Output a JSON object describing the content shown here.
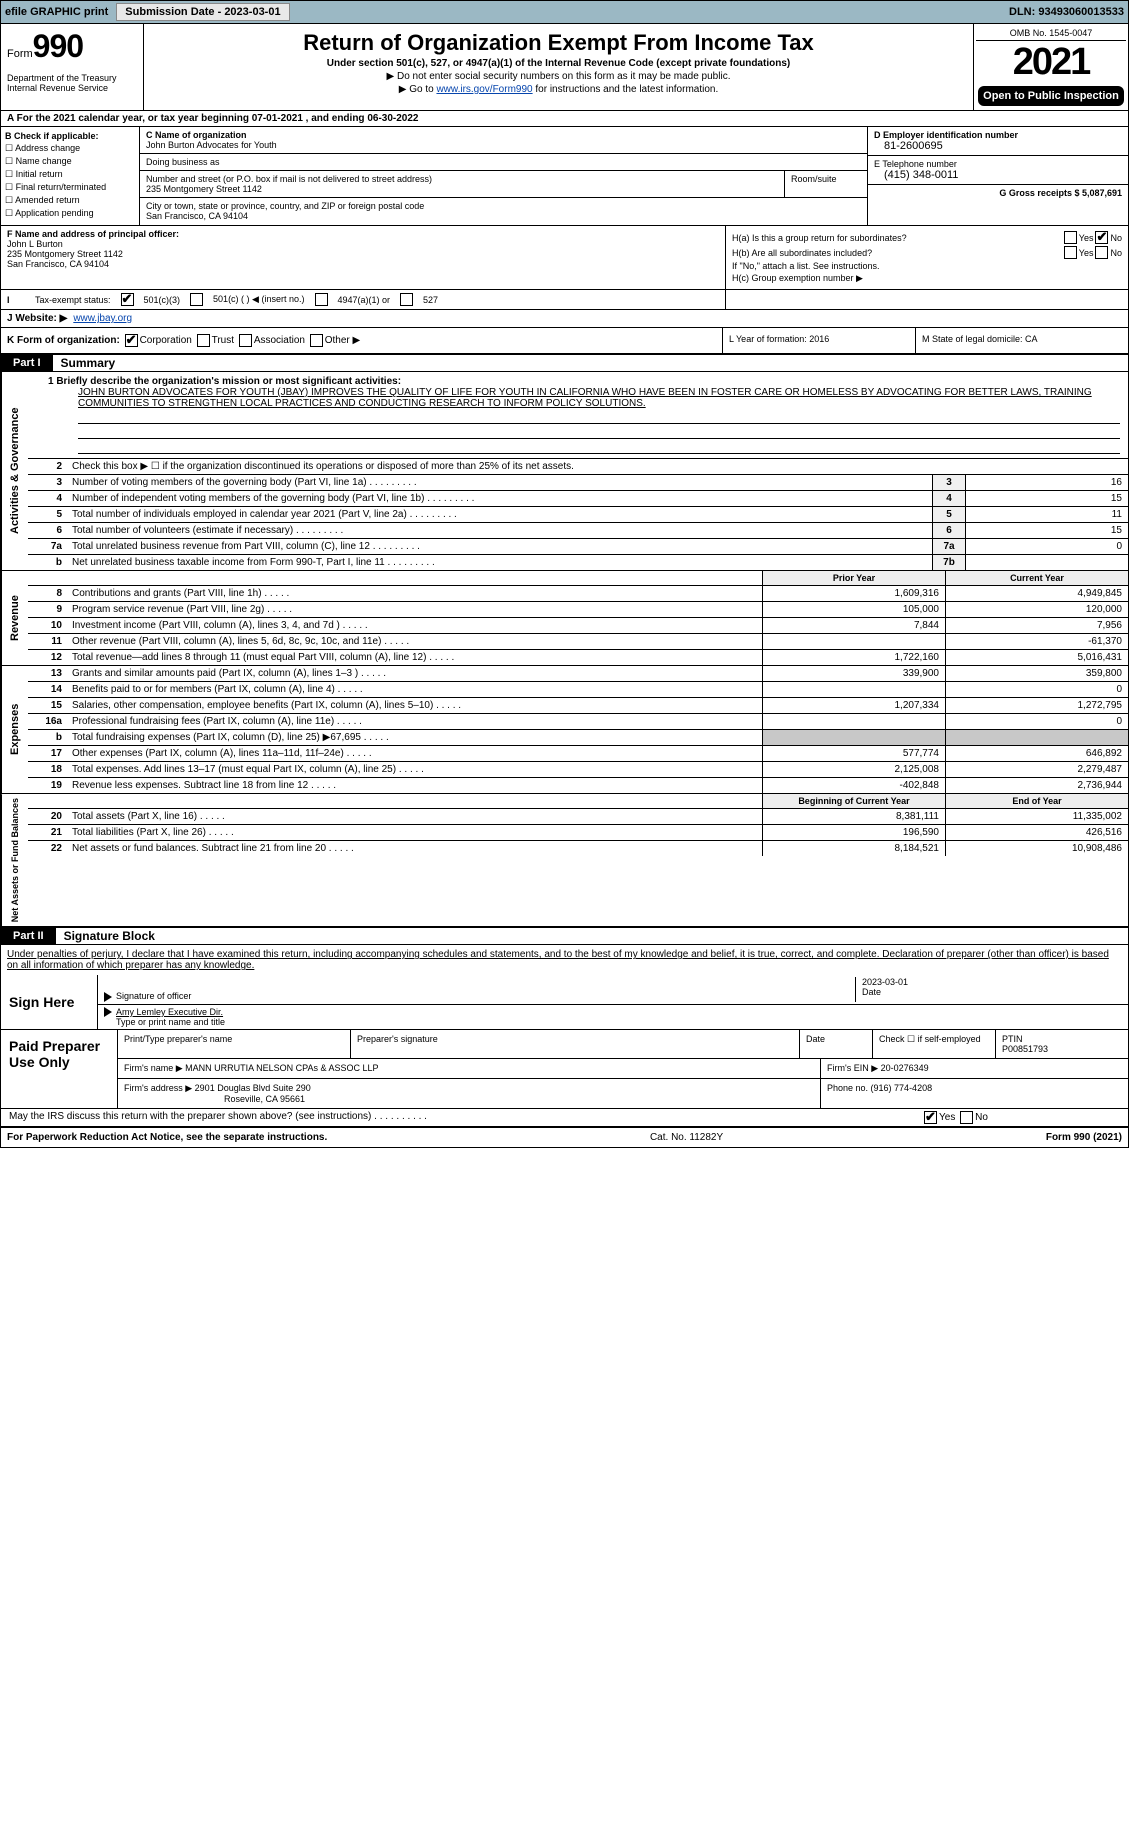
{
  "topbar": {
    "efile_label": "efile GRAPHIC print",
    "sub_date_label": "Submission Date - 2023-03-01",
    "dln": "DLN: 93493060013533"
  },
  "header": {
    "form_word": "Form",
    "form_num": "990",
    "dept": "Department of the Treasury Internal Revenue Service",
    "title": "Return of Organization Exempt From Income Tax",
    "subtitle": "Under section 501(c), 527, or 4947(a)(1) of the Internal Revenue Code (except private foundations)",
    "note1": "▶ Do not enter social security numbers on this form as it may be made public.",
    "note2_pre": "▶ Go to ",
    "note2_link": "www.irs.gov/Form990",
    "note2_post": " for instructions and the latest information.",
    "omb": "OMB No. 1545-0047",
    "year": "2021",
    "open_public": "Open to Public Inspection"
  },
  "row_a": "A For the 2021 calendar year, or tax year beginning 07-01-2021    , and ending 06-30-2022",
  "col_b": {
    "title": "B Check if applicable:",
    "opts": [
      "Address change",
      "Name change",
      "Initial return",
      "Final return/terminated",
      "Amended return",
      "Application pending"
    ]
  },
  "col_c": {
    "name_label": "C Name of organization",
    "name": "John Burton Advocates for Youth",
    "dba_label": "Doing business as",
    "addr_label": "Number and street (or P.O. box if mail is not delivered to street address)",
    "addr": "235 Montgomery Street 1142",
    "room_label": "Room/suite",
    "city_label": "City or town, state or province, country, and ZIP or foreign postal code",
    "city": "San Francisco, CA  94104"
  },
  "col_d": {
    "ein_label": "D Employer identification number",
    "ein": "81-2600695",
    "phone_label": "E Telephone number",
    "phone": "(415) 348-0011",
    "gross_label": "G Gross receipts $ 5,087,691"
  },
  "row_f": {
    "label": "F  Name and address of principal officer:",
    "name": "John L Burton",
    "addr1": "235 Montgomery Street 1142",
    "addr2": "San Francisco, CA  94104"
  },
  "row_h": {
    "ha": "H(a)  Is this a group return for subordinates?",
    "hb": "H(b)  Are all subordinates included?",
    "hb_note": "If \"No,\" attach a list. See instructions.",
    "hc": "H(c)  Group exemption number ▶",
    "yes": "Yes",
    "no": "No"
  },
  "row_i": {
    "label": "Tax-exempt status:",
    "opt1": "501(c)(3)",
    "opt2": "501(c) (  ) ◀ (insert no.)",
    "opt3": "4947(a)(1) or",
    "opt4": "527"
  },
  "row_j": {
    "label": "J Website: ▶",
    "url": "www.jbay.org"
  },
  "row_k": {
    "label": "K Form of organization:",
    "opts": [
      "Corporation",
      "Trust",
      "Association",
      "Other ▶"
    ]
  },
  "row_l": {
    "label": "L Year of formation: 2016"
  },
  "row_m": {
    "label": "M State of legal domicile: CA"
  },
  "part1": {
    "tag": "Part I",
    "title": "Summary",
    "q1_label": "1  Briefly describe the organization's mission or most significant activities:",
    "mission": "JOHN BURTON ADVOCATES FOR YOUTH (JBAY) IMPROVES THE QUALITY OF LIFE FOR YOUTH IN CALIFORNIA WHO HAVE BEEN IN FOSTER CARE OR HOMELESS BY ADVOCATING FOR BETTER LAWS, TRAINING COMMUNITIES TO STRENGTHEN LOCAL PRACTICES AND CONDUCTING RESEARCH TO INFORM POLICY SOLUTIONS.",
    "q2": "Check this box ▶ ☐  if the organization discontinued its operations or disposed of more than 25% of its net assets.",
    "rows_gov": [
      {
        "n": "3",
        "desc": "Number of voting members of the governing body (Part VI, line 1a)",
        "box": "3",
        "val": "16"
      },
      {
        "n": "4",
        "desc": "Number of independent voting members of the governing body (Part VI, line 1b)",
        "box": "4",
        "val": "15"
      },
      {
        "n": "5",
        "desc": "Total number of individuals employed in calendar year 2021 (Part V, line 2a)",
        "box": "5",
        "val": "11"
      },
      {
        "n": "6",
        "desc": "Total number of volunteers (estimate if necessary)",
        "box": "6",
        "val": "15"
      },
      {
        "n": "7a",
        "desc": "Total unrelated business revenue from Part VIII, column (C), line 12",
        "box": "7a",
        "val": "0"
      },
      {
        "n": "b",
        "desc": "Net unrelated business taxable income from Form 990-T, Part I, line 11",
        "box": "7b",
        "val": ""
      }
    ],
    "col_hdr1": "Prior Year",
    "col_hdr2": "Current Year",
    "revenue_rows": [
      {
        "n": "8",
        "desc": "Contributions and grants (Part VIII, line 1h)",
        "c1": "1,609,316",
        "c2": "4,949,845"
      },
      {
        "n": "9",
        "desc": "Program service revenue (Part VIII, line 2g)",
        "c1": "105,000",
        "c2": "120,000"
      },
      {
        "n": "10",
        "desc": "Investment income (Part VIII, column (A), lines 3, 4, and 7d )",
        "c1": "7,844",
        "c2": "7,956"
      },
      {
        "n": "11",
        "desc": "Other revenue (Part VIII, column (A), lines 5, 6d, 8c, 9c, 10c, and 11e)",
        "c1": "",
        "c2": "-61,370"
      },
      {
        "n": "12",
        "desc": "Total revenue—add lines 8 through 11 (must equal Part VIII, column (A), line 12)",
        "c1": "1,722,160",
        "c2": "5,016,431"
      }
    ],
    "expense_rows": [
      {
        "n": "13",
        "desc": "Grants and similar amounts paid (Part IX, column (A), lines 1–3 )",
        "c1": "339,900",
        "c2": "359,800"
      },
      {
        "n": "14",
        "desc": "Benefits paid to or for members (Part IX, column (A), line 4)",
        "c1": "",
        "c2": "0"
      },
      {
        "n": "15",
        "desc": "Salaries, other compensation, employee benefits (Part IX, column (A), lines 5–10)",
        "c1": "1,207,334",
        "c2": "1,272,795"
      },
      {
        "n": "16a",
        "desc": "Professional fundraising fees (Part IX, column (A), line 11e)",
        "c1": "",
        "c2": "0"
      },
      {
        "n": "b",
        "desc": "Total fundraising expenses (Part IX, column (D), line 25) ▶67,695",
        "c1": "shade",
        "c2": "shade"
      },
      {
        "n": "17",
        "desc": "Other expenses (Part IX, column (A), lines 11a–11d, 11f–24e)",
        "c1": "577,774",
        "c2": "646,892"
      },
      {
        "n": "18",
        "desc": "Total expenses. Add lines 13–17 (must equal Part IX, column (A), line 25)",
        "c1": "2,125,008",
        "c2": "2,279,487"
      },
      {
        "n": "19",
        "desc": "Revenue less expenses. Subtract line 18 from line 12",
        "c1": "-402,848",
        "c2": "2,736,944"
      }
    ],
    "net_hdr1": "Beginning of Current Year",
    "net_hdr2": "End of Year",
    "net_rows": [
      {
        "n": "20",
        "desc": "Total assets (Part X, line 16)",
        "c1": "8,381,111",
        "c2": "11,335,002"
      },
      {
        "n": "21",
        "desc": "Total liabilities (Part X, line 26)",
        "c1": "196,590",
        "c2": "426,516"
      },
      {
        "n": "22",
        "desc": "Net assets or fund balances. Subtract line 21 from line 20",
        "c1": "8,184,521",
        "c2": "10,908,486"
      }
    ],
    "sidebar_gov": "Activities & Governance",
    "sidebar_rev": "Revenue",
    "sidebar_exp": "Expenses",
    "sidebar_net": "Net Assets or Fund Balances"
  },
  "part2": {
    "tag": "Part II",
    "title": "Signature Block",
    "declaration": "Under penalties of perjury, I declare that I have examined this return, including accompanying schedules and statements, and to the best of my knowledge and belief, it is true, correct, and complete. Declaration of preparer (other than officer) is based on all information of which preparer has any knowledge.",
    "sign_here": "Sign Here",
    "sig_officer": "Signature of officer",
    "sig_date": "2023-03-01",
    "date_label": "Date",
    "officer_name": "Amy Lemley  Executive Dir.",
    "type_label": "Type or print name and title",
    "paid_label": "Paid Preparer Use Only",
    "prep_name_label": "Print/Type preparer's name",
    "prep_sig_label": "Preparer's signature",
    "prep_date_label": "Date",
    "prep_check": "Check ☐ if self-employed",
    "ptin_label": "PTIN",
    "ptin": "P00851793",
    "firm_name_label": "Firm's name    ▶",
    "firm_name": "MANN URRUTIA NELSON CPAs & ASSOC LLP",
    "firm_ein_label": "Firm's EIN ▶ 20-0276349",
    "firm_addr_label": "Firm's address ▶",
    "firm_addr": "2901 Douglas Blvd Suite 290",
    "firm_city": "Roseville, CA  95661",
    "firm_phone": "Phone no. (916) 774-4208",
    "discuss": "May the IRS discuss this return with the preparer shown above? (see instructions)",
    "yes": "Yes",
    "no": "No"
  },
  "footer": {
    "left": "For Paperwork Reduction Act Notice, see the separate instructions.",
    "mid": "Cat. No. 11282Y",
    "right": "Form 990 (2021)"
  },
  "colors": {
    "topbar_bg": "#9bb8c4",
    "shade": "#c8c8c8",
    "link": "#0645ad"
  }
}
